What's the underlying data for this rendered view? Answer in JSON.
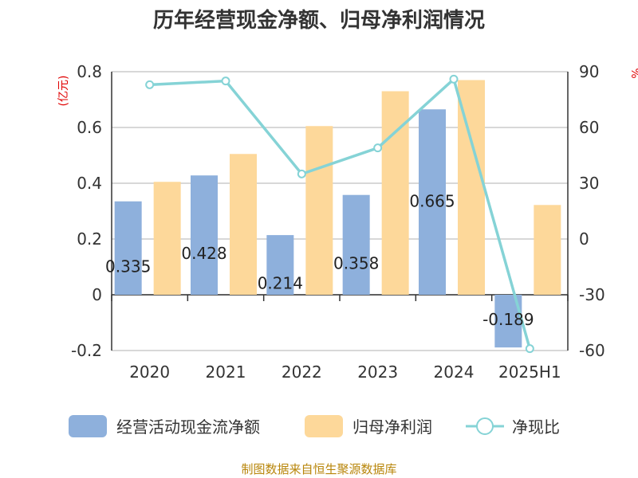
{
  "chart_data": {
    "type": "bar",
    "title": "历年经营现金净额、归母净利润情况",
    "categories": [
      "2020",
      "2021",
      "2022",
      "2023",
      "2024",
      "2025H1"
    ],
    "y_left": {
      "unit": "(亿元)",
      "ylim": [
        -0.2,
        0.8
      ],
      "ticks": [
        "0.8",
        "0.6",
        "0.4",
        "0.2",
        "0",
        "-0.2"
      ],
      "tick_values": [
        0.8,
        0.6,
        0.4,
        0.2,
        0,
        -0.2
      ]
    },
    "y_right": {
      "unit": "%",
      "ylim": [
        -60,
        90
      ],
      "ticks": [
        "90",
        "60",
        "30",
        "0",
        "-30",
        "-60"
      ],
      "tick_values": [
        90,
        60,
        30,
        0,
        -30,
        -60
      ]
    },
    "series": [
      {
        "name": "经营活动现金流净额",
        "type": "bar",
        "axis": "left",
        "color": "#8eb0dc",
        "values": [
          0.335,
          0.428,
          0.214,
          0.358,
          0.665,
          -0.189
        ],
        "labels": [
          "0.335",
          "0.428",
          "0.214",
          "0.358",
          "0.665",
          "-0.189"
        ]
      },
      {
        "name": "归母净利润",
        "type": "bar",
        "axis": "left",
        "color": "#fdd89a",
        "values": [
          0.405,
          0.505,
          0.605,
          0.73,
          0.77,
          0.322
        ]
      },
      {
        "name": "净现比",
        "type": "line",
        "axis": "right",
        "color": "#85d3d6",
        "values": [
          83,
          85,
          35,
          49,
          86,
          -59
        ]
      }
    ],
    "grid": true,
    "legend_position": "bottom"
  },
  "source": "制图数据来自恒生聚源数据库"
}
